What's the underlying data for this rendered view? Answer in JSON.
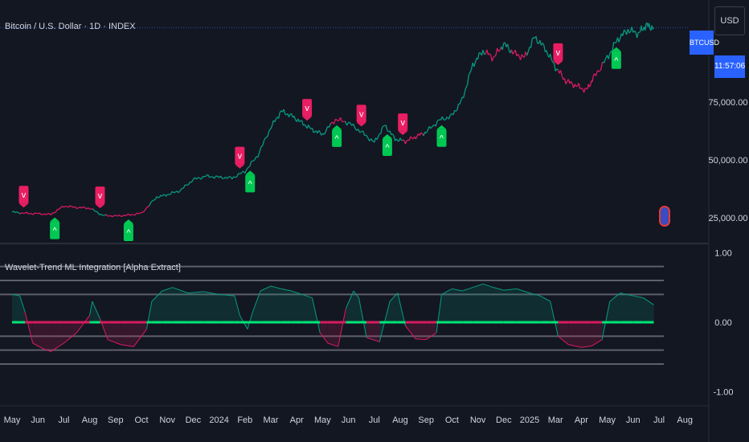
{
  "header": {
    "title": "Bitcoin / U.S. Dollar · 1D · INDEX",
    "currency": "USD"
  },
  "price_scale": {
    "symbol_label": "BTCUSD",
    "countdown": "11:57:06"
  },
  "indicator": {
    "title": "Wavelet-Trend ML Integration [Alpha Extract]"
  },
  "colors": {
    "background": "#131722",
    "bull": "#089981",
    "bear": "#d81b60",
    "bull_signal": "#00c853",
    "bear_signal": "#e91e63",
    "zero_line": "#00e676",
    "accent": "#2962ff"
  },
  "icons": {
    "bull_signal": "caret-up-icon",
    "bear_signal": "caret-down-icon",
    "flag": "us-flag-icon"
  },
  "chart_data": [
    {
      "type": "line",
      "title": "Bitcoin / U.S. Dollar · 1D · INDEX",
      "x_unit": "month",
      "x_ticks": [
        "May",
        "Jun",
        "Jul",
        "Aug",
        "Sep",
        "Oct",
        "Nov",
        "Dec",
        "2024",
        "Feb",
        "Mar",
        "Apr",
        "May",
        "Jun",
        "Jul",
        "Aug",
        "Sep",
        "Oct",
        "Nov",
        "Dec",
        "2025",
        "Mar",
        "Apr",
        "May",
        "Jun",
        "Jul",
        "Aug"
      ],
      "y_ticks": [
        "25,000.00",
        "50,000.00",
        "75,000.00"
      ],
      "ylim": [
        15000,
        112000
      ],
      "series": [
        {
          "points": [
            [
              0,
              27500
            ],
            [
              0.5,
              27000
            ],
            [
              1,
              26800
            ],
            [
              1.5,
              26500
            ],
            [
              2,
              30100
            ],
            [
              2.5,
              29500
            ],
            [
              3,
              29200
            ],
            [
              3.5,
              26100
            ],
            [
              4,
              25800
            ],
            [
              4.5,
              26200
            ],
            [
              5,
              27000
            ],
            [
              5.6,
              34000
            ],
            [
              6,
              35000
            ],
            [
              6.5,
              36800
            ],
            [
              7,
              41500
            ],
            [
              7.5,
              43000
            ],
            [
              8,
              42500
            ],
            [
              8.5,
              42200
            ],
            [
              9,
              45000
            ],
            [
              9.5,
              52000
            ],
            [
              10,
              64000
            ],
            [
              10.4,
              71000
            ],
            [
              10.8,
              69000
            ],
            [
              11.2,
              66000
            ],
            [
              11.6,
              63000
            ],
            [
              12,
              61000
            ],
            [
              12.5,
              67500
            ],
            [
              13,
              66000
            ],
            [
              13.5,
              62000
            ],
            [
              14,
              57500
            ],
            [
              14.4,
              65000
            ],
            [
              14.8,
              59000
            ],
            [
              15.2,
              58000
            ],
            [
              15.6,
              60000
            ],
            [
              16,
              62000
            ],
            [
              16.5,
              67000
            ],
            [
              17,
              69000
            ],
            [
              17.4,
              76000
            ],
            [
              17.8,
              91000
            ],
            [
              18.2,
              97000
            ],
            [
              18.6,
              94000
            ],
            [
              19,
              100000
            ],
            [
              19.4,
              96000
            ],
            [
              19.8,
              94000
            ],
            [
              20.2,
              103000
            ],
            [
              20.6,
              98000
            ],
            [
              21,
              90000
            ],
            [
              21.4,
              84000
            ],
            [
              21.8,
              82000
            ],
            [
              22.2,
              80000
            ],
            [
              22.5,
              86000
            ],
            [
              23,
              94000
            ],
            [
              23.4,
              102000
            ],
            [
              23.8,
              106000
            ],
            [
              24.2,
              104500
            ],
            [
              24.5,
              108000
            ],
            [
              24.8,
              107000
            ]
          ]
        }
      ],
      "bear_ranges": [
        [
          0.3,
          3.1
        ],
        [
          3.6,
          5.3
        ],
        [
          12.3,
          12.9
        ],
        [
          15.1,
          15.9
        ],
        [
          18.3,
          18.9
        ],
        [
          19.3,
          19.9
        ],
        [
          21.1,
          22.8
        ]
      ],
      "signals": [
        {
          "type": "bear",
          "x": 0.45,
          "label": "v"
        },
        {
          "type": "bull",
          "x": 1.65,
          "label": "^"
        },
        {
          "type": "bear",
          "x": 3.4,
          "label": "v"
        },
        {
          "type": "bull",
          "x": 4.5,
          "label": "^"
        },
        {
          "type": "bear",
          "x": 8.8,
          "label": "v"
        },
        {
          "type": "bull",
          "x": 9.2,
          "label": "^"
        },
        {
          "type": "bear",
          "x": 11.4,
          "label": "v"
        },
        {
          "type": "bull",
          "x": 12.55,
          "label": "^"
        },
        {
          "type": "bear",
          "x": 13.5,
          "label": "v"
        },
        {
          "type": "bull",
          "x": 14.5,
          "label": "^"
        },
        {
          "type": "bear",
          "x": 15.1,
          "label": "v"
        },
        {
          "type": "bull",
          "x": 16.6,
          "label": "^"
        },
        {
          "type": "bear",
          "x": 21.1,
          "label": "v"
        },
        {
          "type": "bull",
          "x": 23.35,
          "label": "^"
        }
      ]
    },
    {
      "type": "area",
      "title": "Wavelet-Trend ML Integration [Alpha Extract]",
      "y_ticks": [
        "1.00",
        "0.00",
        "-1.00"
      ],
      "ylim": [
        -1.05,
        1.05
      ],
      "levels": [
        0.8,
        0.6,
        0.4,
        -0.2,
        -0.4,
        -0.6
      ],
      "points": [
        [
          0,
          0.4
        ],
        [
          0.3,
          0.38
        ],
        [
          0.5,
          0.15
        ],
        [
          0.8,
          -0.3
        ],
        [
          1.2,
          -0.38
        ],
        [
          1.5,
          -0.42
        ],
        [
          2,
          -0.3
        ],
        [
          2.5,
          -0.15
        ],
        [
          3,
          0.1
        ],
        [
          3.1,
          0.3
        ],
        [
          3.4,
          0.05
        ],
        [
          3.7,
          -0.25
        ],
        [
          4.2,
          -0.32
        ],
        [
          4.7,
          -0.35
        ],
        [
          5.2,
          -0.1
        ],
        [
          5.4,
          0.3
        ],
        [
          5.8,
          0.45
        ],
        [
          6.2,
          0.5
        ],
        [
          6.8,
          0.42
        ],
        [
          7.4,
          0.44
        ],
        [
          8,
          0.4
        ],
        [
          8.6,
          0.38
        ],
        [
          8.8,
          0.1
        ],
        [
          9.1,
          -0.1
        ],
        [
          9.3,
          0.15
        ],
        [
          9.6,
          0.45
        ],
        [
          10,
          0.52
        ],
        [
          10.4,
          0.48
        ],
        [
          10.8,
          0.45
        ],
        [
          11.2,
          0.4
        ],
        [
          11.6,
          0.35
        ],
        [
          11.9,
          -0.15
        ],
        [
          12.2,
          -0.3
        ],
        [
          12.6,
          -0.35
        ],
        [
          12.9,
          0.2
        ],
        [
          13.2,
          0.45
        ],
        [
          13.4,
          0.35
        ],
        [
          13.7,
          -0.22
        ],
        [
          14.2,
          -0.28
        ],
        [
          14.6,
          0.3
        ],
        [
          14.9,
          0.42
        ],
        [
          15.2,
          -0.05
        ],
        [
          15.6,
          -0.24
        ],
        [
          16,
          -0.25
        ],
        [
          16.4,
          -0.15
        ],
        [
          16.6,
          0.4
        ],
        [
          17,
          0.48
        ],
        [
          17.4,
          0.45
        ],
        [
          17.8,
          0.5
        ],
        [
          18.2,
          0.55
        ],
        [
          18.6,
          0.5
        ],
        [
          19,
          0.46
        ],
        [
          19.5,
          0.48
        ],
        [
          20,
          0.42
        ],
        [
          20.4,
          0.38
        ],
        [
          20.8,
          0.3
        ],
        [
          21.1,
          -0.2
        ],
        [
          21.5,
          -0.32
        ],
        [
          22,
          -0.36
        ],
        [
          22.4,
          -0.34
        ],
        [
          22.8,
          -0.25
        ],
        [
          23.1,
          0.3
        ],
        [
          23.5,
          0.42
        ],
        [
          24,
          0.38
        ],
        [
          24.4,
          0.35
        ],
        [
          24.8,
          0.25
        ]
      ]
    }
  ]
}
